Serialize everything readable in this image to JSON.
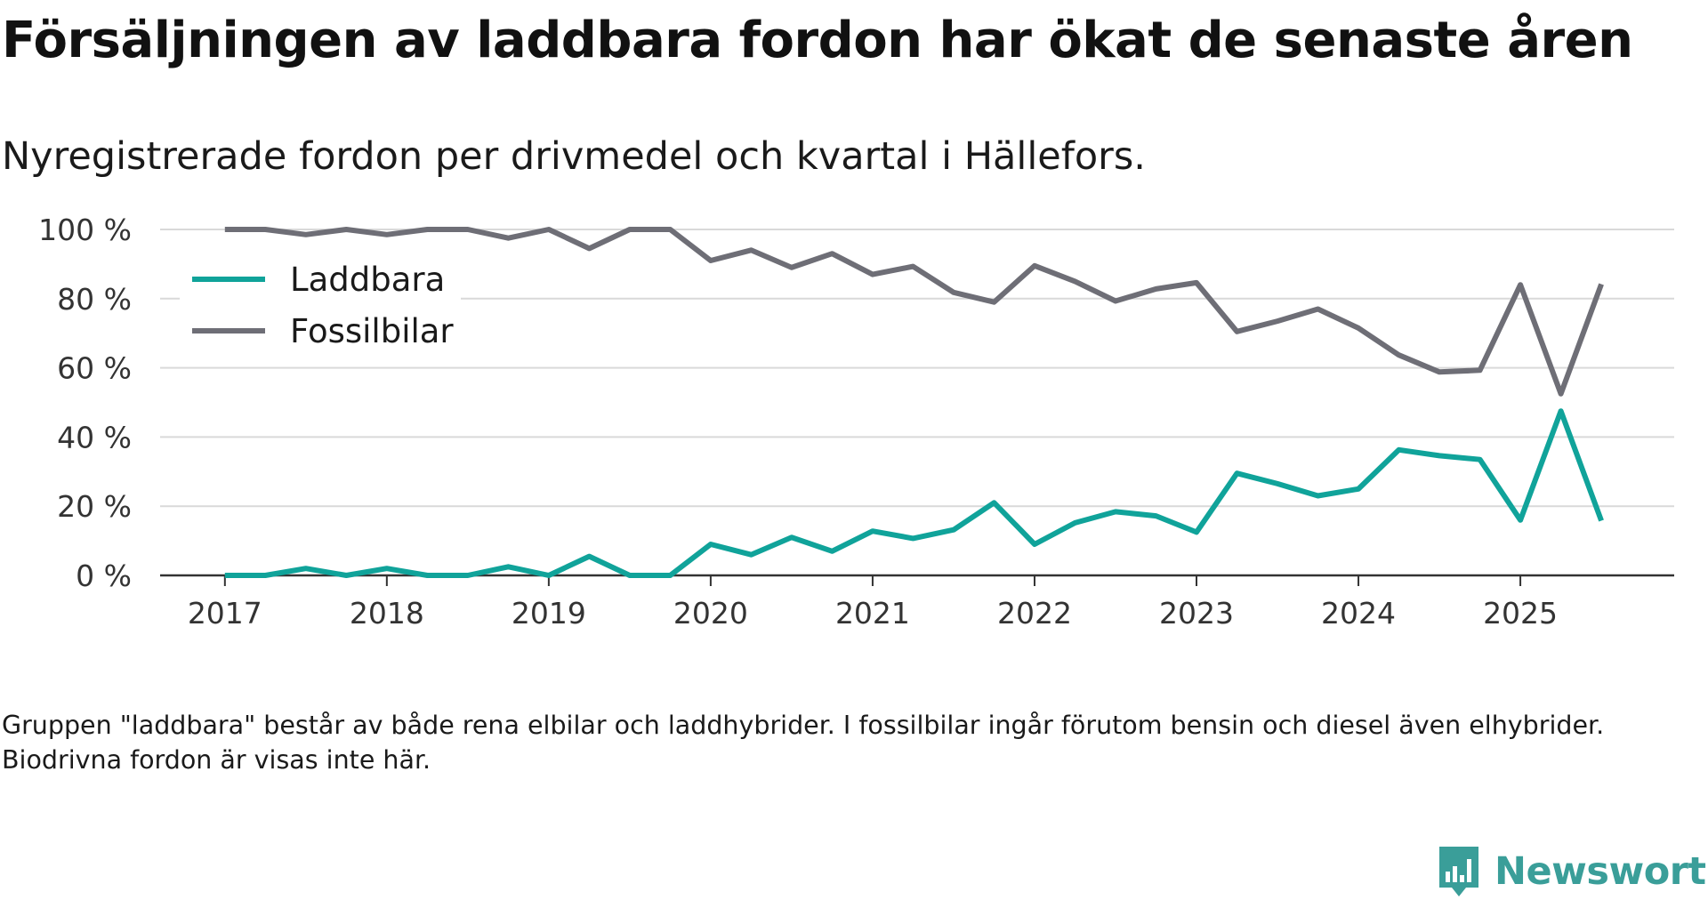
{
  "title": "Försäljningen av laddbara fordon har ökat de senaste åren",
  "subtitle": "Nyregistrerade fordon per drivmedel och kvartal i Hällefors.",
  "footnote": "Gruppen \"laddbara\" består av både rena elbilar och laddhybrider. I fossilbilar ingår förutom bensin och diesel även elhybrider. Biodrivna fordon är visas inte här.",
  "brand": {
    "name": "Newsworthy",
    "logo_icon": "newsworthy-logo-icon",
    "color": "#3a9e99"
  },
  "colors": {
    "laddbara": "#10a39a",
    "fossilbilar": "#6e6e76",
    "grid": "#d9d9d9",
    "axis": "#333333"
  },
  "chart_data": {
    "type": "line",
    "title": "Försäljningen av laddbara fordon har ökat de senaste åren",
    "subtitle": "Nyregistrerade fordon per drivmedel och kvartal i Hällefors.",
    "xlabel": "",
    "ylabel": "",
    "ylim": [
      0,
      100
    ],
    "y_ticks": [
      0,
      20,
      40,
      60,
      80,
      100
    ],
    "y_tick_labels": [
      "0 %",
      "20 %",
      "40 %",
      "60 %",
      "80 %",
      "100 %"
    ],
    "x_ticks": [
      2017,
      2018,
      2019,
      2020,
      2021,
      2022,
      2023,
      2024,
      2025
    ],
    "x_tick_labels": [
      "2017",
      "2018",
      "2019",
      "2020",
      "2021",
      "2022",
      "2023",
      "2024",
      "2025"
    ],
    "xlim": [
      2016.6,
      2025.95
    ],
    "grid": "horizontal",
    "legend_position": "top-left",
    "categories": [
      "2017 Q1",
      "2017 Q2",
      "2017 Q3",
      "2017 Q4",
      "2018 Q1",
      "2018 Q2",
      "2018 Q3",
      "2018 Q4",
      "2019 Q1",
      "2019 Q2",
      "2019 Q3",
      "2019 Q4",
      "2020 Q1",
      "2020 Q2",
      "2020 Q3",
      "2020 Q4",
      "2021 Q1",
      "2021 Q2",
      "2021 Q3",
      "2021 Q4",
      "2022 Q1",
      "2022 Q2",
      "2022 Q3",
      "2022 Q4",
      "2023 Q1",
      "2023 Q2",
      "2023 Q3",
      "2023 Q4",
      "2024 Q1",
      "2024 Q2",
      "2024 Q3",
      "2024 Q4",
      "2025 Q1",
      "2025 Q2",
      "2025 Q3"
    ],
    "x": [
      2017,
      2017.25,
      2017.5,
      2017.75,
      2018,
      2018.25,
      2018.5,
      2018.75,
      2019,
      2019.25,
      2019.5,
      2019.75,
      2020,
      2020.25,
      2020.5,
      2020.75,
      2021,
      2021.25,
      2021.5,
      2021.75,
      2022,
      2022.25,
      2022.5,
      2022.75,
      2023,
      2023.25,
      2023.5,
      2023.75,
      2024,
      2024.25,
      2024.5,
      2024.75,
      2025,
      2025.25,
      2025.5
    ],
    "series": [
      {
        "name": "Laddbara",
        "key": "laddbara",
        "values": [
          0,
          0,
          2,
          0,
          2,
          0,
          0,
          2.5,
          0,
          5.5,
          0,
          0,
          9,
          6,
          11,
          7,
          12.8,
          10.7,
          13.2,
          21,
          9,
          15.2,
          18.4,
          17.2,
          12.5,
          29.5,
          26.5,
          23,
          25,
          36.3,
          34.6,
          33.5,
          16,
          47.5,
          15.8
        ]
      },
      {
        "name": "Fossilbilar",
        "key": "fossilbilar",
        "values": [
          100,
          100,
          98.5,
          100,
          98.5,
          100,
          100,
          97.5,
          100,
          94.5,
          100,
          100,
          91,
          94,
          89,
          93,
          87,
          89.3,
          81.8,
          79,
          89.5,
          85,
          79.3,
          82.8,
          84.6,
          70.5,
          73.5,
          77,
          71.5,
          63.7,
          58.8,
          59.3,
          84,
          52.5,
          84.2
        ]
      }
    ]
  }
}
